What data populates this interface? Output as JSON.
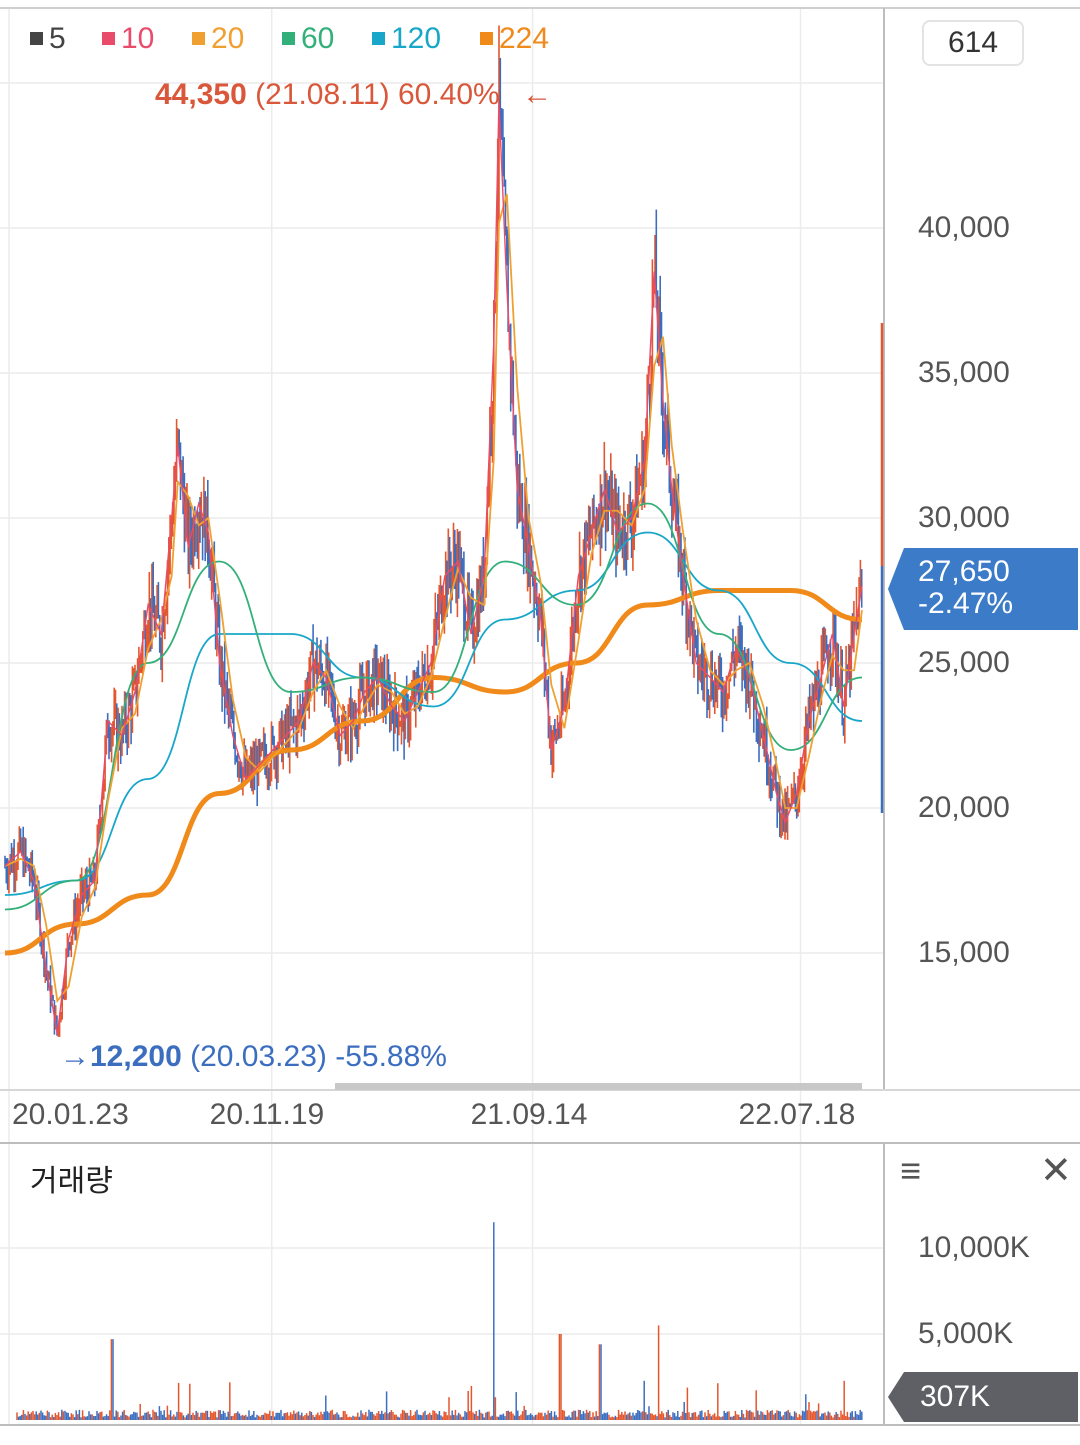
{
  "legend": [
    {
      "label": "5",
      "color": "#444444"
    },
    {
      "label": "10",
      "color": "#e94b6b"
    },
    {
      "label": "20",
      "color": "#f0a030"
    },
    {
      "label": "60",
      "color": "#33b07a"
    },
    {
      "label": "120",
      "color": "#19a7c9"
    },
    {
      "label": "224",
      "color": "#f08a1a"
    }
  ],
  "range_badge": "614",
  "high_annotation": {
    "price": "44,350",
    "date": "(21.08.11)",
    "pct": "60.40%",
    "arrow": "←"
  },
  "low_annotation": {
    "arrow": "→",
    "price": "12,200",
    "date": "(20.03.23)",
    "pct": "-55.88%"
  },
  "current_price": {
    "value": "27,650",
    "change": "-2.47%"
  },
  "volume_panel": {
    "title": "거래량",
    "current": "307K",
    "menu_icon": "hamburger-menu-icon",
    "close_icon": "close-icon"
  },
  "colors": {
    "up": "#e4572e",
    "down": "#3c6ec0",
    "price_box": "#3c7bc8",
    "volume_box": "#5f6065"
  },
  "chart_data": {
    "type": "line",
    "series_kind": "candlestick-with-moving-averages",
    "price_axis": {
      "ticks": [
        15000,
        20000,
        25000,
        30000,
        35000,
        40000
      ],
      "tick_labels": [
        "15,000",
        "20,000",
        "25,000",
        "30,000",
        "35,000",
        "40,000"
      ],
      "range": [
        11000,
        45500
      ]
    },
    "x_axis": {
      "ticks": [
        "20.01.23",
        "20.11.19",
        "21.09.14",
        "22.07.18"
      ]
    },
    "price_path": [
      {
        "x": "2020-01-23",
        "y": 18000
      },
      {
        "x": "2020-02-10",
        "y": 18500
      },
      {
        "x": "2020-02-25",
        "y": 17500
      },
      {
        "x": "2020-03-10",
        "y": 14500
      },
      {
        "x": "2020-03-23",
        "y": 12200
      },
      {
        "x": "2020-04-05",
        "y": 15500
      },
      {
        "x": "2020-04-20",
        "y": 17000
      },
      {
        "x": "2020-05-05",
        "y": 17500
      },
      {
        "x": "2020-05-20",
        "y": 23000
      },
      {
        "x": "2020-06-05",
        "y": 22500
      },
      {
        "x": "2020-06-20",
        "y": 24000
      },
      {
        "x": "2020-07-05",
        "y": 27000
      },
      {
        "x": "2020-07-20",
        "y": 26000
      },
      {
        "x": "2020-08-01",
        "y": 30000
      },
      {
        "x": "2020-08-08",
        "y": 32500
      },
      {
        "x": "2020-08-20",
        "y": 29000
      },
      {
        "x": "2020-09-01",
        "y": 30500
      },
      {
        "x": "2020-09-12",
        "y": 29500
      },
      {
        "x": "2020-09-25",
        "y": 25000
      },
      {
        "x": "2020-10-10",
        "y": 22500
      },
      {
        "x": "2020-10-25",
        "y": 21000
      },
      {
        "x": "2020-11-10",
        "y": 21500
      },
      {
        "x": "2020-11-25",
        "y": 22000
      },
      {
        "x": "2020-12-10",
        "y": 22500
      },
      {
        "x": "2020-12-25",
        "y": 23000
      },
      {
        "x": "2021-01-10",
        "y": 25000
      },
      {
        "x": "2021-01-25",
        "y": 24500
      },
      {
        "x": "2021-02-10",
        "y": 22500
      },
      {
        "x": "2021-02-25",
        "y": 23000
      },
      {
        "x": "2021-03-10",
        "y": 24000
      },
      {
        "x": "2021-03-25",
        "y": 24500
      },
      {
        "x": "2021-04-10",
        "y": 23500
      },
      {
        "x": "2021-04-25",
        "y": 23000
      },
      {
        "x": "2021-05-10",
        "y": 24000
      },
      {
        "x": "2021-05-25",
        "y": 25000
      },
      {
        "x": "2021-06-10",
        "y": 28000
      },
      {
        "x": "2021-06-25",
        "y": 28500
      },
      {
        "x": "2021-07-10",
        "y": 26000
      },
      {
        "x": "2021-07-25",
        "y": 28000
      },
      {
        "x": "2021-08-05",
        "y": 36000
      },
      {
        "x": "2021-08-11",
        "y": 44350
      },
      {
        "x": "2021-08-20",
        "y": 38000
      },
      {
        "x": "2021-09-01",
        "y": 31000
      },
      {
        "x": "2021-09-14",
        "y": 29000
      },
      {
        "x": "2021-09-28",
        "y": 26500
      },
      {
        "x": "2021-10-10",
        "y": 22000
      },
      {
        "x": "2021-10-25",
        "y": 23500
      },
      {
        "x": "2021-11-10",
        "y": 28000
      },
      {
        "x": "2021-11-25",
        "y": 29500
      },
      {
        "x": "2021-12-10",
        "y": 31000
      },
      {
        "x": "2021-12-25",
        "y": 29500
      },
      {
        "x": "2022-01-10",
        "y": 30000
      },
      {
        "x": "2022-01-25",
        "y": 32000
      },
      {
        "x": "2022-02-05",
        "y": 38500
      },
      {
        "x": "2022-02-15",
        "y": 34000
      },
      {
        "x": "2022-02-25",
        "y": 31000
      },
      {
        "x": "2022-03-10",
        "y": 28000
      },
      {
        "x": "2022-03-25",
        "y": 25000
      },
      {
        "x": "2022-04-10",
        "y": 24500
      },
      {
        "x": "2022-04-25",
        "y": 24000
      },
      {
        "x": "2022-05-10",
        "y": 25500
      },
      {
        "x": "2022-05-25",
        "y": 24500
      },
      {
        "x": "2022-06-10",
        "y": 22500
      },
      {
        "x": "2022-06-25",
        "y": 20500
      },
      {
        "x": "2022-07-05",
        "y": 19500
      },
      {
        "x": "2022-07-18",
        "y": 20500
      },
      {
        "x": "2022-08-01",
        "y": 23000
      },
      {
        "x": "2022-08-15",
        "y": 24500
      },
      {
        "x": "2022-08-28",
        "y": 26000
      },
      {
        "x": "2022-09-10",
        "y": 23500
      },
      {
        "x": "2022-09-22",
        "y": 26000
      },
      {
        "x": "2022-10-01",
        "y": 27650
      }
    ],
    "moving_averages": [
      {
        "name": "224",
        "y": [
          15000,
          16000,
          17000,
          20500,
          22000,
          23000,
          24500,
          24000,
          25000,
          27000,
          27500,
          27500,
          26500
        ]
      },
      {
        "name": "120",
        "y": [
          17000,
          17500,
          21000,
          26000,
          26000,
          24500,
          23500,
          26500,
          27500,
          29500,
          27500,
          25000,
          23000
        ]
      },
      {
        "name": "60",
        "y": [
          16500,
          17500,
          25000,
          28500,
          24000,
          24500,
          24000,
          28500,
          27000,
          30500,
          26000,
          22000,
          24500
        ]
      }
    ],
    "volume_axis": {
      "tick_labels": [
        "5,000K",
        "10,000K"
      ],
      "ticks": [
        5000,
        10000
      ],
      "unit": "K"
    },
    "volume_spikes": [
      {
        "x": "2020-05-25",
        "value": 4700
      },
      {
        "x": "2021-08-05",
        "value": 11500
      },
      {
        "x": "2021-10-20",
        "value": 5000
      },
      {
        "x": "2021-12-05",
        "value": 4400
      },
      {
        "x": "2022-01-30",
        "value": 6500
      },
      {
        "x": "2022-02-10",
        "value": 5500
      }
    ],
    "current_volume": 307
  }
}
